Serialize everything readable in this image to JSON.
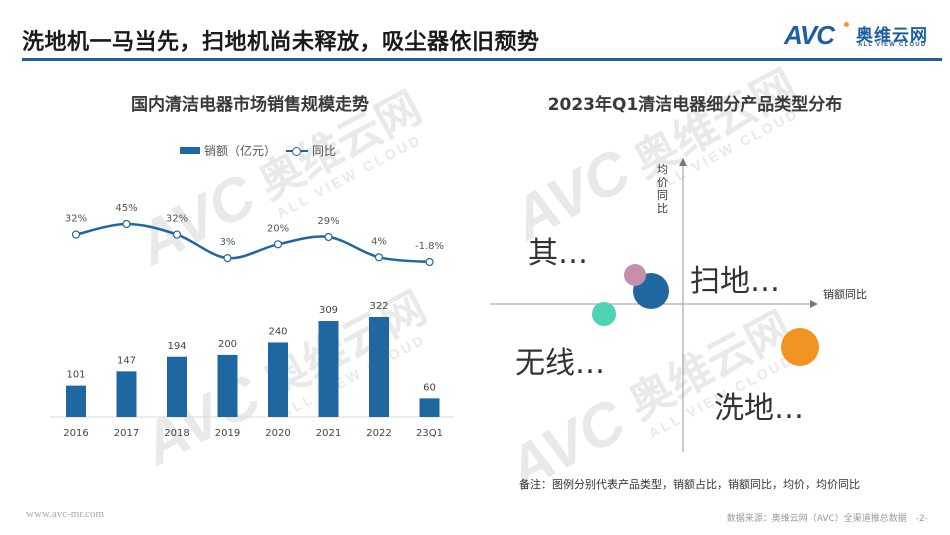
{
  "page": {
    "title": "洗地机一马当先，扫地机尚未释放，吸尘器依旧颓势",
    "accent_color": "#1f5fa0"
  },
  "logo": {
    "mark": "AVC",
    "name_cn": "奥维云网",
    "name_en": "ALL VIEW CLOUD"
  },
  "watermark": {
    "mark": "AVC",
    "name_cn": "奥维云网",
    "name_en": "ALL VIEW CLOUD"
  },
  "left_chart": {
    "title": "国内清洁电器市场销售规模走势",
    "legend": {
      "bar": "销额（亿元）",
      "line": "同比"
    }
  },
  "right_chart": {
    "title": "2023年Q1清洁电器细分产品类型分布",
    "y_axis_label": [
      "均",
      "价",
      "同",
      "比"
    ],
    "x_axis_label": "销额同比",
    "labels": {
      "other": "其…",
      "sweeper": "扫地…",
      "cordless": "无线…",
      "washer": "洗地…"
    },
    "note": "备注：图例分别代表产品类型，销额占比，销额同比，均价，均价同比"
  },
  "footer": {
    "url": "www.avc-mr.com",
    "source": "数据来源：奥维云网（AVC）全渠道推总数据　-2-"
  },
  "chart_data": [
    {
      "type": "bar",
      "title": "国内清洁电器市场销售规模走势",
      "categories": [
        "2016",
        "2017",
        "2018",
        "2019",
        "2020",
        "2021",
        "2022",
        "23Q1"
      ],
      "series": [
        {
          "name": "销额（亿元）",
          "type": "bar",
          "color": "#1f67a0",
          "values": [
            101,
            147,
            194,
            200,
            240,
            309,
            322,
            60
          ]
        },
        {
          "name": "同比",
          "type": "line",
          "color": "#1f67a0",
          "values": [
            32,
            45,
            32,
            3,
            20,
            29,
            4,
            -1.8
          ],
          "labels": [
            "32%",
            "45%",
            "32%",
            "3%",
            "20%",
            "29%",
            "4%",
            "-1.8%"
          ]
        }
      ],
      "xlabel": "",
      "ylabel": "",
      "grid": false,
      "legend_position": "top"
    },
    {
      "type": "scatter",
      "title": "2023年Q1清洁电器细分产品类型分布",
      "xlabel": "销额同比",
      "ylabel": "均价同比",
      "note": "bubble size = 销额占比",
      "points": [
        {
          "name": "扫地机",
          "label": "扫地…",
          "x": -0.3,
          "y": 0.15,
          "size": 36,
          "color": "#1f67a0"
        },
        {
          "name": "其他",
          "label": "其…",
          "x": -0.45,
          "y": 0.35,
          "size": 22,
          "color": "#c490ab"
        },
        {
          "name": "无线吸尘器",
          "label": "无线…",
          "x": -0.75,
          "y": -0.1,
          "size": 24,
          "color": "#4ed3b5"
        },
        {
          "name": "洗地机",
          "label": "洗地…",
          "x": 1.2,
          "y": -0.45,
          "size": 38,
          "color": "#f29422"
        }
      ]
    }
  ]
}
